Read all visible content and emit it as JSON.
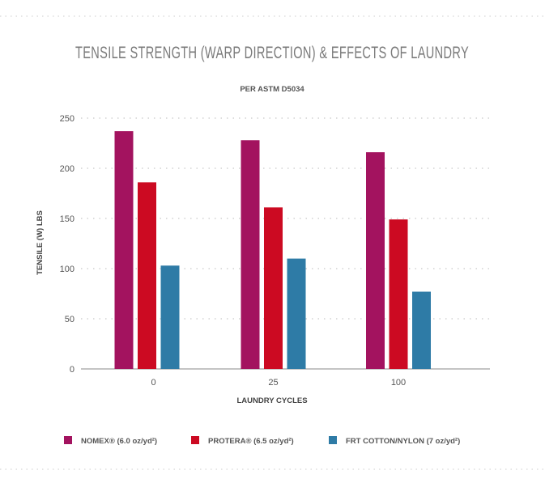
{
  "chart_data": {
    "type": "bar",
    "title": "TENSILE STRENGTH (WARP DIRECTION) & EFFECTS OF LAUNDRY",
    "subtitle": "PER ASTM D5034",
    "xlabel": "LAUNDRY CYCLES",
    "ylabel": "TENSILE (W) LBS",
    "categories": [
      "0",
      "25",
      "100"
    ],
    "ylim": [
      0,
      250
    ],
    "yticks": [
      "0",
      "50",
      "100",
      "150",
      "200",
      "250"
    ],
    "grid": true,
    "legend_position": "bottom",
    "series": [
      {
        "name": "NOMEX® (6.0 oz/yd²)",
        "color": "#a3135f",
        "values": [
          237,
          228,
          216
        ]
      },
      {
        "name": "PROTERA® (6.5 oz/yd²)",
        "color": "#cc0a22",
        "values": [
          186,
          161,
          149
        ]
      },
      {
        "name": "FRT COTTON/NYLON (7 oz/yd²)",
        "color": "#2e7ba6",
        "values": [
          103,
          110,
          77
        ]
      }
    ]
  }
}
